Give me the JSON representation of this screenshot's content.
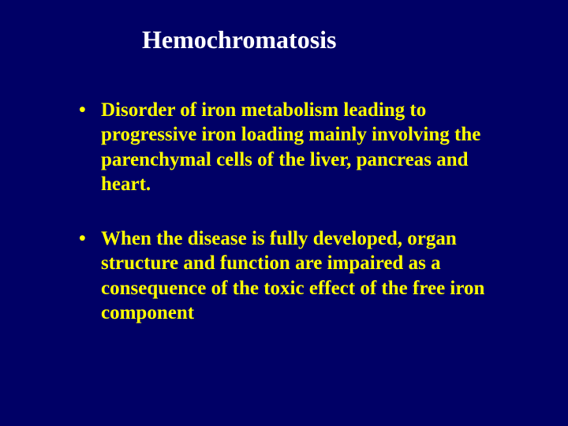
{
  "slide": {
    "background_color": "#000066",
    "title": {
      "text": "Hemochromatosis",
      "color": "#ffffff",
      "fontsize": 32,
      "font_weight": "bold",
      "font_family": "Times New Roman"
    },
    "bullets": [
      {
        "text": "Disorder of iron metabolism leading to progressive iron loading mainly involving the  parenchymal cells of the liver, pancreas and heart.",
        "color": "#ffff00",
        "fontsize": 25,
        "font_weight": "bold"
      },
      {
        "text": "When the disease is fully developed, organ structure and function are impaired  as a consequence of the toxic effect of  the free iron component",
        "color": "#ffff00",
        "fontsize": 25,
        "font_weight": "bold"
      }
    ],
    "bullet_marker_color": "#ffff00"
  }
}
